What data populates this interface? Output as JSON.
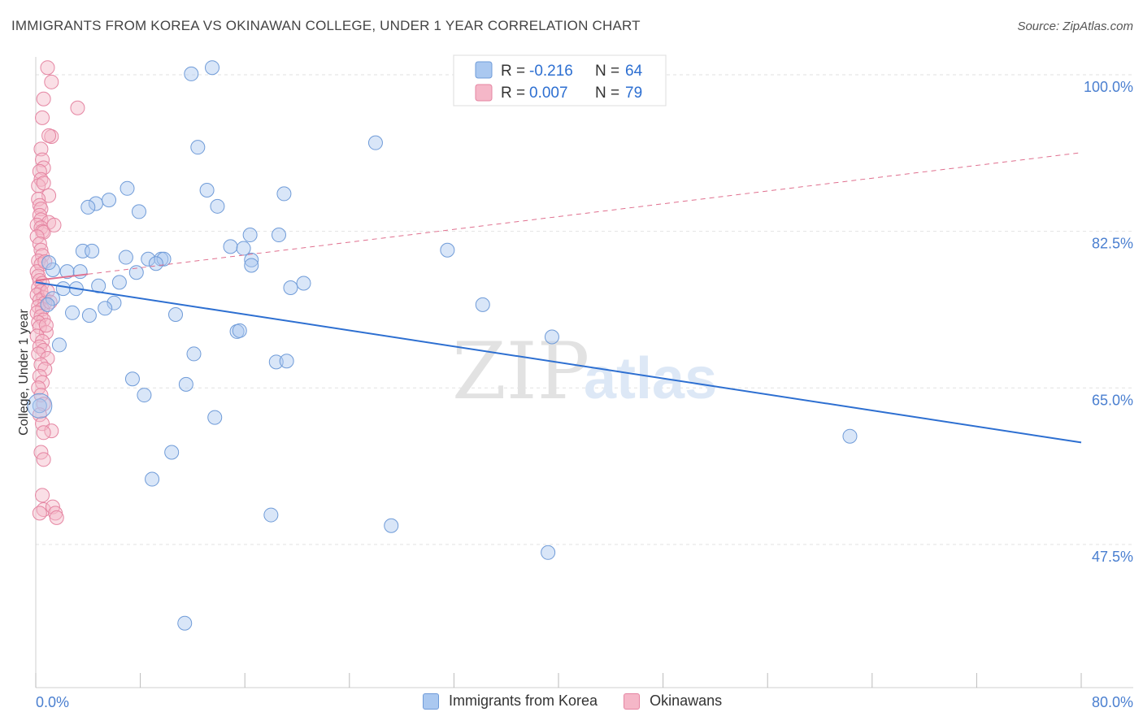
{
  "header": {
    "title": "IMMIGRANTS FROM KOREA VS OKINAWAN COLLEGE, UNDER 1 YEAR CORRELATION CHART",
    "source": "Source: ZipAtlas.com"
  },
  "watermark": {
    "zip": "ZIP",
    "atlas": "atlas"
  },
  "colors": {
    "korea_fill": "#aac8f0",
    "korea_stroke": "#6f9bd8",
    "korea_line": "#2d6fd1",
    "okinawa_fill": "#f5b7c8",
    "okinawa_stroke": "#e585a2",
    "okinawa_line": "#e0708f",
    "axis_label": "#4a7fd0",
    "grid": "#e2e2e2"
  },
  "legend": {
    "rows": [
      {
        "r_label": "R =",
        "r_value": "-0.216",
        "n_label": "N =",
        "n_value": "64"
      },
      {
        "r_label": "R =",
        "r_value": "0.007",
        "n_label": "N =",
        "n_value": "79"
      }
    ]
  },
  "chart_data": {
    "type": "scatter",
    "title": "IMMIGRANTS FROM KOREA VS OKINAWAN COLLEGE, UNDER 1 YEAR CORRELATION CHART",
    "xlabel": "",
    "ylabel": "College, Under 1 year",
    "xlim": [
      0,
      80
    ],
    "ylim": [
      31.5,
      102
    ],
    "x_tick_labels": [
      "0.0%",
      "80.0%"
    ],
    "y_ticks": [
      47.5,
      65.0,
      82.5,
      100.0
    ],
    "y_tick_labels": [
      "47.5%",
      "65.0%",
      "82.5%",
      "100.0%"
    ],
    "grid": true,
    "series": [
      {
        "name": "Immigrants from Korea",
        "r": -0.216,
        "n": 64,
        "trend": {
          "x": [
            0,
            80
          ],
          "y": [
            76.8,
            58.9
          ]
        },
        "points": [
          [
            11.9,
            100.1
          ],
          [
            13.5,
            100.8
          ],
          [
            26.0,
            92.4
          ],
          [
            12.4,
            91.9
          ],
          [
            7.0,
            87.3
          ],
          [
            13.1,
            87.1
          ],
          [
            19.0,
            86.7
          ],
          [
            5.6,
            86.0
          ],
          [
            4.6,
            85.6
          ],
          [
            4.0,
            85.2
          ],
          [
            7.9,
            84.7
          ],
          [
            13.9,
            85.3
          ],
          [
            16.4,
            82.1
          ],
          [
            18.6,
            82.1
          ],
          [
            14.9,
            80.8
          ],
          [
            15.9,
            80.6
          ],
          [
            31.5,
            80.4
          ],
          [
            3.6,
            80.3
          ],
          [
            4.3,
            80.3
          ],
          [
            6.9,
            79.6
          ],
          [
            8.6,
            79.4
          ],
          [
            9.6,
            79.4
          ],
          [
            9.8,
            79.4
          ],
          [
            9.2,
            78.9
          ],
          [
            16.5,
            79.3
          ],
          [
            16.5,
            78.7
          ],
          [
            1.3,
            78.2
          ],
          [
            2.4,
            78.0
          ],
          [
            3.4,
            78.0
          ],
          [
            7.7,
            77.9
          ],
          [
            2.1,
            76.1
          ],
          [
            3.1,
            76.1
          ],
          [
            4.8,
            76.4
          ],
          [
            6.4,
            76.8
          ],
          [
            20.5,
            76.7
          ],
          [
            19.5,
            76.2
          ],
          [
            1.3,
            75.0
          ],
          [
            34.2,
            74.3
          ],
          [
            6.0,
            74.5
          ],
          [
            5.3,
            73.9
          ],
          [
            2.8,
            73.4
          ],
          [
            4.1,
            73.1
          ],
          [
            10.7,
            73.2
          ],
          [
            15.4,
            71.3
          ],
          [
            15.6,
            71.4
          ],
          [
            39.5,
            70.7
          ],
          [
            1.8,
            69.8
          ],
          [
            12.1,
            68.8
          ],
          [
            18.4,
            67.9
          ],
          [
            19.2,
            68.0
          ],
          [
            7.4,
            66.0
          ],
          [
            11.5,
            65.4
          ],
          [
            8.3,
            64.2
          ],
          [
            13.7,
            61.7
          ],
          [
            0.3,
            63.0
          ],
          [
            62.3,
            59.6
          ],
          [
            10.4,
            57.8
          ],
          [
            8.9,
            54.8
          ],
          [
            18.0,
            50.8
          ],
          [
            27.2,
            49.6
          ],
          [
            39.2,
            46.6
          ],
          [
            11.4,
            38.7
          ],
          [
            1.0,
            79.0
          ],
          [
            0.9,
            74.3
          ]
        ]
      },
      {
        "name": "Okinawans",
        "r": 0.007,
        "n": 79,
        "trend": {
          "x": [
            0,
            80
          ],
          "y": [
            77.0,
            91.3
          ]
        },
        "points": [
          [
            0.9,
            100.8
          ],
          [
            1.2,
            99.2
          ],
          [
            0.6,
            97.3
          ],
          [
            3.2,
            96.3
          ],
          [
            0.5,
            95.2
          ],
          [
            1.2,
            93.1
          ],
          [
            1.0,
            93.2
          ],
          [
            0.4,
            91.7
          ],
          [
            0.5,
            90.5
          ],
          [
            0.6,
            89.6
          ],
          [
            0.3,
            89.2
          ],
          [
            0.4,
            88.3
          ],
          [
            0.2,
            87.6
          ],
          [
            0.6,
            87.9
          ],
          [
            1.0,
            86.5
          ],
          [
            0.2,
            86.1
          ],
          [
            0.3,
            85.4
          ],
          [
            0.4,
            85.0
          ],
          [
            0.3,
            84.3
          ],
          [
            0.4,
            83.8
          ],
          [
            1.0,
            83.5
          ],
          [
            0.1,
            83.2
          ],
          [
            0.4,
            82.9
          ],
          [
            0.5,
            82.5
          ],
          [
            0.6,
            82.4
          ],
          [
            0.1,
            81.9
          ],
          [
            0.3,
            81.1
          ],
          [
            0.4,
            80.4
          ],
          [
            0.5,
            79.8
          ],
          [
            0.2,
            79.2
          ],
          [
            0.4,
            78.8
          ],
          [
            0.1,
            78.0
          ],
          [
            0.2,
            77.5
          ],
          [
            0.3,
            77.0
          ],
          [
            0.5,
            76.7
          ],
          [
            0.2,
            76.2
          ],
          [
            0.4,
            75.8
          ],
          [
            0.1,
            75.4
          ],
          [
            0.6,
            75.1
          ],
          [
            0.3,
            74.8
          ],
          [
            0.7,
            74.5
          ],
          [
            0.2,
            74.1
          ],
          [
            0.5,
            73.8
          ],
          [
            0.1,
            73.4
          ],
          [
            0.4,
            73.0
          ],
          [
            0.6,
            72.6
          ],
          [
            0.2,
            72.3
          ],
          [
            0.3,
            71.8
          ],
          [
            0.8,
            71.2
          ],
          [
            0.1,
            70.8
          ],
          [
            0.5,
            70.2
          ],
          [
            0.3,
            69.6
          ],
          [
            0.6,
            69.2
          ],
          [
            0.2,
            68.8
          ],
          [
            0.9,
            68.3
          ],
          [
            0.4,
            67.6
          ],
          [
            0.7,
            67.1
          ],
          [
            0.3,
            66.3
          ],
          [
            0.5,
            65.6
          ],
          [
            0.2,
            65.0
          ],
          [
            0.4,
            64.2
          ],
          [
            0.6,
            63.2
          ],
          [
            0.3,
            62.0
          ],
          [
            0.5,
            61.0
          ],
          [
            1.2,
            60.2
          ],
          [
            0.6,
            60.0
          ],
          [
            0.4,
            57.8
          ],
          [
            0.6,
            57.0
          ],
          [
            0.5,
            53.0
          ],
          [
            0.6,
            51.4
          ],
          [
            0.3,
            51.0
          ],
          [
            1.3,
            51.7
          ],
          [
            1.5,
            51.0
          ],
          [
            1.6,
            50.5
          ],
          [
            0.9,
            75.8
          ],
          [
            1.1,
            74.6
          ],
          [
            0.7,
            79.1
          ],
          [
            1.4,
            83.2
          ],
          [
            0.8,
            72.0
          ]
        ]
      }
    ]
  }
}
